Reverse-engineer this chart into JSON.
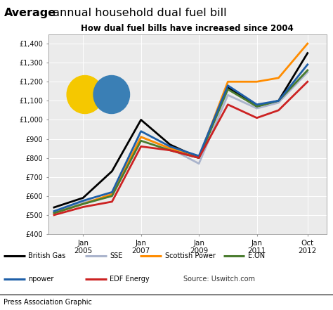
{
  "title_bold": "Average",
  "title_rest": " annual household dual fuel bill",
  "subtitle": "How dual fuel bills have increased since 2004",
  "ylim": [
    400,
    1450
  ],
  "yticks": [
    400,
    500,
    600,
    700,
    800,
    900,
    1000,
    1100,
    1200,
    1300,
    1400
  ],
  "ytick_labels": [
    "£400",
    "£500",
    "£600",
    "£700",
    "£800",
    "£900",
    "£1,000",
    "£1,100",
    "£1,200",
    "£1,300",
    "£1,400"
  ],
  "xtick_labels": [
    "Jan\n2005",
    "Jan\n2007",
    "Jan\n2009",
    "Jan\n2011",
    "Oct\n2012"
  ],
  "xtick_positions": [
    1,
    3,
    5,
    7,
    8.75
  ],
  "xlim": [
    -0.2,
    9.4
  ],
  "background_color": "#ffffff",
  "plot_bg_color": "#ebebeb",
  "grid_color": "#ffffff",
  "source_text": "Source: Uswitch.com",
  "footer_text": "Press Association Graphic",
  "elec_color": "#f5c800",
  "gas_color": "#3a7fb5",
  "series": [
    {
      "name": "British Gas",
      "color": "#000000",
      "linewidth": 2.0,
      "data_x": [
        0,
        1,
        2,
        3,
        4,
        5,
        6,
        7,
        7.75,
        8.75
      ],
      "data_y": [
        540,
        590,
        730,
        1000,
        870,
        800,
        1170,
        1070,
        1100,
        1350
      ]
    },
    {
      "name": "SSE",
      "color": "#aab4cc",
      "linewidth": 2.0,
      "data_x": [
        0,
        1,
        2,
        3,
        4,
        5,
        6,
        7,
        7.75,
        8.75
      ],
      "data_y": [
        515,
        565,
        600,
        910,
        850,
        770,
        1130,
        1060,
        1090,
        1250
      ]
    },
    {
      "name": "Scottish Power",
      "color": "#ff8c00",
      "linewidth": 2.0,
      "data_x": [
        0,
        1,
        2,
        3,
        4,
        5,
        6,
        7,
        7.75,
        8.75
      ],
      "data_y": [
        510,
        558,
        610,
        910,
        850,
        800,
        1200,
        1200,
        1220,
        1400
      ]
    },
    {
      "name": "E.ON",
      "color": "#4a7c2f",
      "linewidth": 2.0,
      "data_x": [
        0,
        1,
        2,
        3,
        4,
        5,
        6,
        7,
        7.75,
        8.75
      ],
      "data_y": [
        510,
        558,
        600,
        890,
        840,
        800,
        1160,
        1070,
        1100,
        1260
      ]
    },
    {
      "name": "npower",
      "color": "#1e5fa8",
      "linewidth": 2.0,
      "data_x": [
        0,
        1,
        2,
        3,
        4,
        5,
        6,
        7,
        7.75,
        8.75
      ],
      "data_y": [
        520,
        575,
        620,
        940,
        860,
        810,
        1180,
        1080,
        1100,
        1290
      ]
    },
    {
      "name": "EDF Energy",
      "color": "#cc2222",
      "linewidth": 2.0,
      "data_x": [
        0,
        1,
        2,
        3,
        4,
        5,
        6,
        7,
        7.75,
        8.75
      ],
      "data_y": [
        500,
        542,
        570,
        860,
        840,
        800,
        1080,
        1010,
        1050,
        1200
      ]
    }
  ],
  "legend_row1": [
    "British Gas",
    "SSE",
    "Scottish Power",
    "E.ON"
  ],
  "legend_row2": [
    "npower",
    "EDF Energy"
  ]
}
